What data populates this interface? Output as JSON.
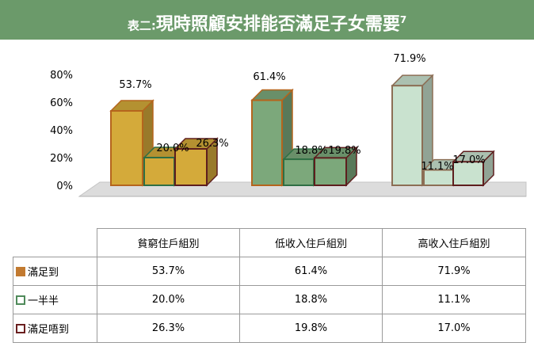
{
  "header": {
    "title_prefix": "表二:",
    "title_main": "現時照顧安排能否滿足子女需要",
    "title_note": "7"
  },
  "colors": {
    "banner": "#6b9a6a",
    "satisfied_fill": "#d9a935",
    "satisfied_border": "#b5651d",
    "half_fill": "#7aa879",
    "half_border": "#2f6f44",
    "not_satisfied_border": "#6a1f1f"
  },
  "chart_data": {
    "type": "bar",
    "categories": [
      "貧窮住戶組別",
      "低收入住戶組別",
      "高收入住戶組別"
    ],
    "series": [
      {
        "name": "滿足到",
        "values": [
          53.7,
          61.4,
          71.9
        ]
      },
      {
        "name": "一半半",
        "values": [
          20.0,
          18.8,
          11.1
        ]
      },
      {
        "name": "滿足唔到",
        "values": [
          26.3,
          19.8,
          17.0
        ]
      }
    ],
    "value_labels": [
      [
        "53.7%",
        "20.0%",
        "26.3%"
      ],
      [
        "61.4%",
        "18.8%",
        "19.8%"
      ],
      [
        "71.9%",
        "11.1%",
        "17.0%"
      ]
    ],
    "y_ticks": [
      "0%",
      "20%",
      "40%",
      "60%",
      "80%"
    ],
    "ylim": [
      0,
      80
    ],
    "group_fills": [
      "#d4aa3a",
      "#7ca87b",
      "#c9e2cf"
    ],
    "group_borders": [
      "#b5651d",
      "#2f6f44",
      "#8a8a8a"
    ]
  },
  "table": {
    "rows": [
      {
        "label": "滿足到",
        "values": [
          "53.7%",
          "61.4%",
          "71.9%"
        ],
        "swatch": "#c27a30"
      },
      {
        "label": "一半半",
        "values": [
          "20.0%",
          "18.8%",
          "11.1%"
        ],
        "swatch": "#4f8a5a"
      },
      {
        "label": "滿足唔到",
        "values": [
          "26.3%",
          "19.8%",
          "17.0%"
        ],
        "swatch": "#6a1f1f"
      }
    ]
  }
}
